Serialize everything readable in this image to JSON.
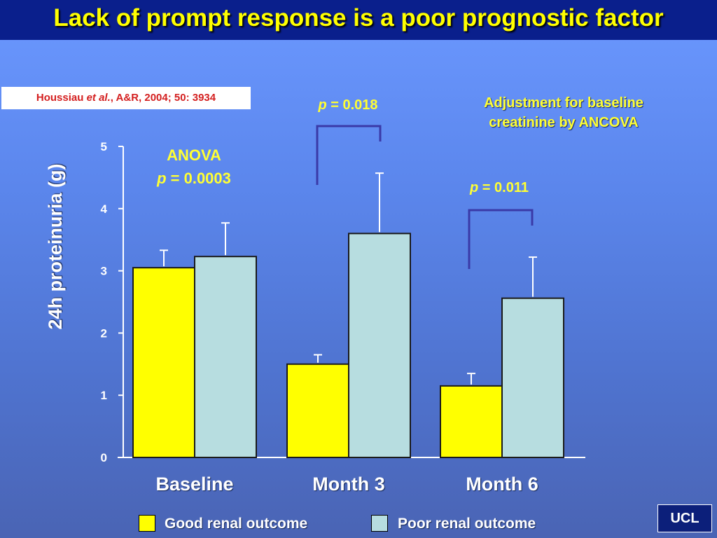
{
  "slide": {
    "title": "Lack of prompt response is a poor prognostic factor",
    "citation": {
      "author": "Houssiau ",
      "etal": "et al.",
      "rest": ", A&R, 2004; 50: 3934"
    },
    "adjustment_note": [
      "Adjustment for baseline",
      "creatinine by ANCOVA"
    ],
    "logo": "UCL"
  },
  "colors": {
    "good": "#ffff00",
    "poor": "#b7dde0",
    "accent_text": "#ffff33",
    "bracket": "#3a3aa8"
  },
  "chart_data": {
    "type": "bar",
    "title": "",
    "ylabel": "24h proteinuria (g)",
    "xlabel": "",
    "ylim": [
      0,
      5
    ],
    "yticks": [
      "0",
      "1",
      "2",
      "3",
      "4",
      "5"
    ],
    "categories": [
      "Baseline",
      "Month 3",
      "Month 6"
    ],
    "series": [
      {
        "name": "Good renal outcome",
        "values": [
          3.05,
          1.5,
          1.15
        ],
        "error_upper": [
          3.33,
          1.65,
          1.35
        ]
      },
      {
        "name": "Poor renal outcome",
        "values": [
          3.23,
          3.6,
          2.56
        ],
        "error_upper": [
          3.77,
          4.57,
          3.22
        ]
      }
    ],
    "annotations": {
      "anova": {
        "line1": "ANOVA",
        "p": "p",
        "rest": " = 0.0003"
      },
      "month3": {
        "p": "p",
        "rest": " = 0.018"
      },
      "month6": {
        "p": "p",
        "rest": " = 0.011"
      }
    },
    "legend_position": "bottom"
  }
}
